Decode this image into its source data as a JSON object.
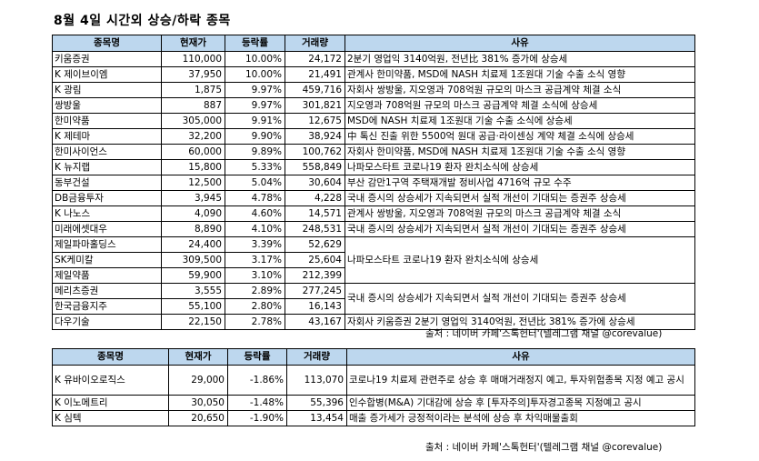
{
  "title": "8월 4일  시간외 상승/하락 종목",
  "headers": [
    "종목명",
    "현재가",
    "등락률",
    "거래량",
    "사유"
  ],
  "rising": [
    {
      "name": "키움증권",
      "price": "110,000",
      "rate": "10.00%",
      "volume": "24,172",
      "reason": "2분기 영업익 3140억원, 전년比 381% 증가에 상승세"
    },
    {
      "name": "K 제이브이엠",
      "price": "37,950",
      "rate": "10.00%",
      "volume": "21,491",
      "reason": "관계사 한미약품, MSD에 NASH 치료제 1조원대 기술 수출 소식 영향"
    },
    {
      "name": "K 광림",
      "price": "1,875",
      "rate": "9.97%",
      "volume": "459,716",
      "reason": "자회사 쌍방울, 지오영과 708억원 규모의 마스크 공급계약 체결 소식"
    },
    {
      "name": "쌍방울",
      "price": "887",
      "rate": "9.97%",
      "volume": "301,821",
      "reason": "지오영과 708억원 규모의 마스크 공급계약 체결 소식에 상승세"
    },
    {
      "name": "한미약품",
      "price": "305,000",
      "rate": "9.91%",
      "volume": "12,675",
      "reason": "MSD에 NASH 치료제 1조원대 기술 수출 소식에 상승세"
    },
    {
      "name": "K 제테마",
      "price": "32,200",
      "rate": "9.90%",
      "volume": "38,924",
      "reason": "中 톡신 진출 위한 5500억 원대 공급·라이센싱 계약 체결 소식에 상승세"
    },
    {
      "name": "한미사이언스",
      "price": "60,000",
      "rate": "9.89%",
      "volume": "100,762",
      "reason": "자회사 한미약품, MSD에 NASH 치료제 1조원대 기술 수출 소식 영향"
    },
    {
      "name": "K 뉴지랩",
      "price": "15,800",
      "rate": "5.33%",
      "volume": "558,849",
      "reason": "나파모스타트 코로나19 환자 완치소식에 상승세"
    },
    {
      "name": "동부건설",
      "price": "12,500",
      "rate": "5.04%",
      "volume": "30,604",
      "reason": "부산 감만1구역 주택재개발 정비사업 4716억 규모 수주"
    },
    {
      "name": "DB금융투자",
      "price": "3,945",
      "rate": "4.78%",
      "volume": "4,228",
      "reason": "국내 증시의 상승세가 지속되면서 실적 개선이 기대되는 증권주 상승세"
    },
    {
      "name": "K 나노스",
      "price": "4,090",
      "rate": "4.60%",
      "volume": "14,571",
      "reason": "관계사 쌍방울, 지오영과 708억원 규모의 마스크 공급계약 체결 소식"
    },
    {
      "name": "미래에셋대우",
      "price": "8,890",
      "rate": "4.10%",
      "volume": "248,531",
      "reason": "국내 증시의 상승세가 지속되면서 실적 개선이 기대되는 증권주 상승세"
    },
    {
      "name": "제일파마홀딩스",
      "price": "24,400",
      "rate": "3.39%",
      "volume": "52,629"
    },
    {
      "name": "SK케미칼",
      "price": "309,500",
      "rate": "3.17%",
      "volume": "25,604"
    },
    {
      "name": "제일약품",
      "price": "59,900",
      "rate": "3.10%",
      "volume": "212,399"
    },
    {
      "name": "메리츠증권",
      "price": "3,555",
      "rate": "2.89%",
      "volume": "277,245"
    },
    {
      "name": "한국금융지주",
      "price": "55,100",
      "rate": "2.80%",
      "volume": "16,143"
    },
    {
      "name": "다우기술",
      "price": "22,150",
      "rate": "2.78%",
      "volume": "43,167",
      "reason": "자회사 키움증권 2분기 영업익 3140억원, 전년比 381% 증가에 상승세"
    }
  ],
  "merged_reason_pharma": "나파모스타트 코로나19 환자 완치소식에 상승세",
  "merged_reason_securities": "국내 증시의 상승세가 지속되면서 실적 개선이 기대되는 증권주 상승세",
  "falling": [
    {
      "name": "K 유바이오로직스",
      "price": "29,000",
      "rate": "-1.86%",
      "volume": "113,070",
      "reason": "코로나19 치료제 관련주로 상승 후 매매거래정지 예고, 투자위험종목 지정 예고 공시"
    },
    {
      "name": "K 이노메트리",
      "price": "30,050",
      "rate": "-1.48%",
      "volume": "55,396",
      "reason": "인수합병(M&A) 기대감에 상승 후 [투자주의]투자경고종목 지정예고 공시"
    },
    {
      "name": "K 심텍",
      "price": "20,650",
      "rate": "-1.90%",
      "volume": "13,454",
      "reason": "매출 증가세가 긍정적이라는 분석에 상승 후 차익매물출회"
    }
  ],
  "source": "출처 : 네이버 카페'스톡헌터'(텔레그램 채널 @corevalue)",
  "colors": {
    "header_bg": "#bdd7ee"
  }
}
